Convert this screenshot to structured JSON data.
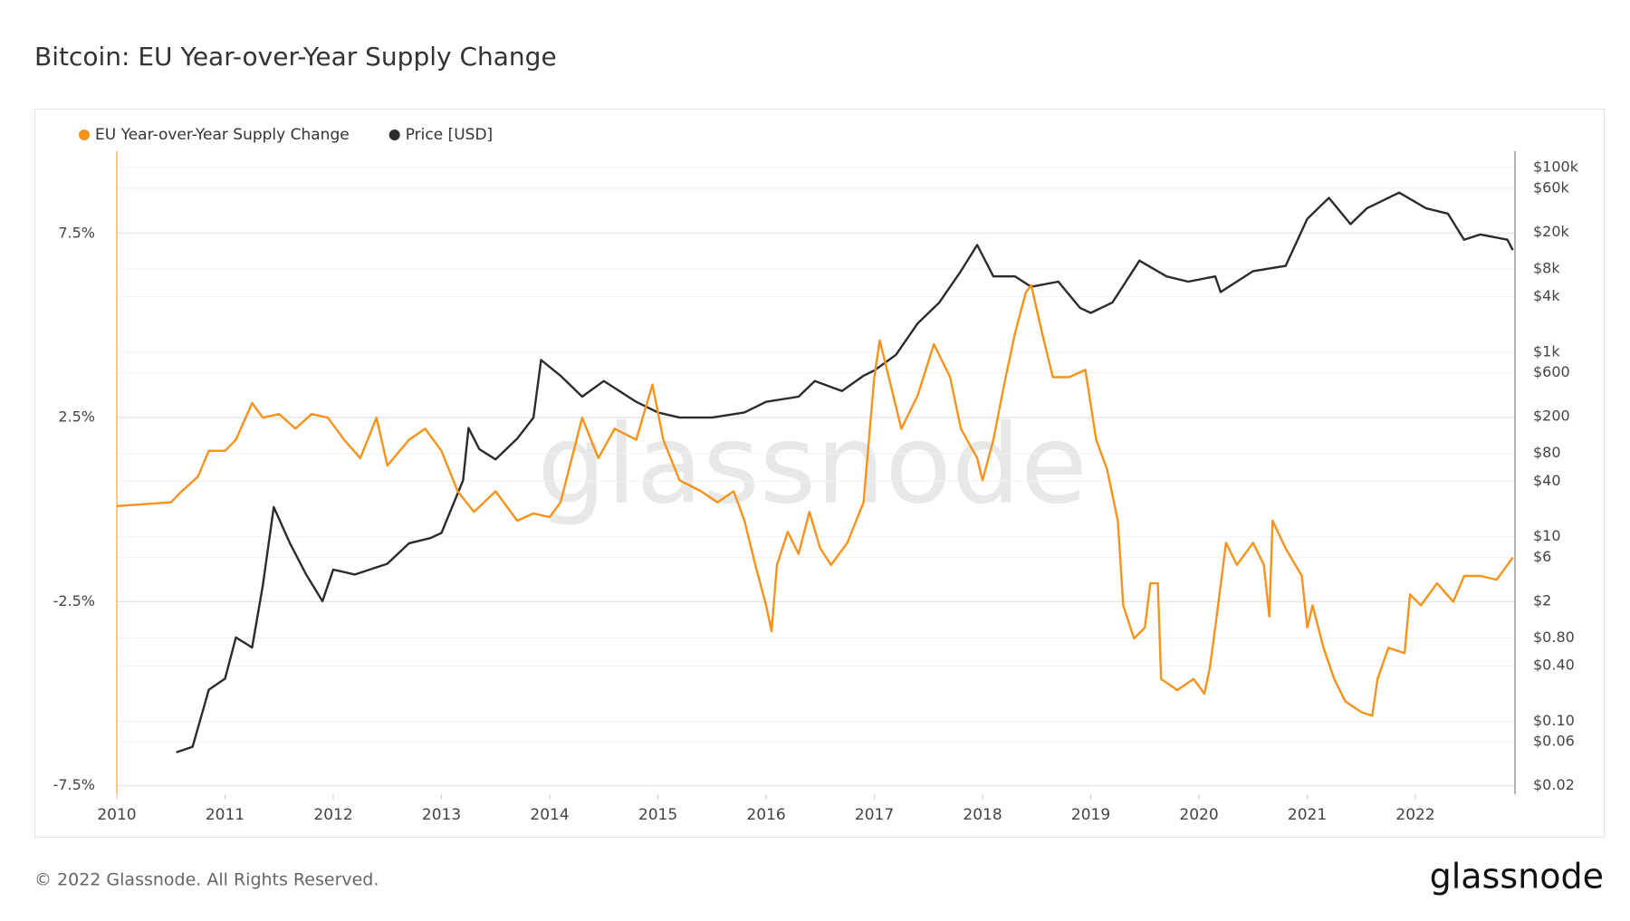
{
  "chart_data": {
    "type": "line",
    "title": "Bitcoin: EU Year-over-Year Supply Change",
    "watermark": "glassnode",
    "xlim": [
      2010,
      2022.92
    ],
    "xticks": [
      2010,
      2011,
      2012,
      2013,
      2014,
      2015,
      2016,
      2017,
      2018,
      2019,
      2020,
      2021,
      2022
    ],
    "ylim": [
      -7.73,
      9.74
    ],
    "yticks": [
      {
        "value": 7.5,
        "label": "7.5%"
      },
      {
        "value": 2.5,
        "label": "2.5%"
      },
      {
        "value": -2.5,
        "label": "-2.5%"
      },
      {
        "value": -7.5,
        "label": "-7.5%"
      }
    ],
    "y2lim": [
      0.0162,
      151000
    ],
    "y2log": true,
    "y2ticks": [
      {
        "value": 100000,
        "label": "$100k"
      },
      {
        "value": 60000,
        "label": "$60k"
      },
      {
        "value": 20000,
        "label": "$20k"
      },
      {
        "value": 8000,
        "label": "$8k"
      },
      {
        "value": 4000,
        "label": "$4k"
      },
      {
        "value": 1000,
        "label": "$1k"
      },
      {
        "value": 600,
        "label": "$600"
      },
      {
        "value": 200,
        "label": "$200"
      },
      {
        "value": 80,
        "label": "$80"
      },
      {
        "value": 40,
        "label": "$40"
      },
      {
        "value": 10,
        "label": "$10"
      },
      {
        "value": 6,
        "label": "$6"
      },
      {
        "value": 2,
        "label": "$2"
      },
      {
        "value": 0.8,
        "label": "$0.80"
      },
      {
        "value": 0.4,
        "label": "$0.40"
      },
      {
        "value": 0.1,
        "label": "$0.10"
      },
      {
        "value": 0.06,
        "label": "$0.06"
      },
      {
        "value": 0.02,
        "label": "$0.02"
      }
    ],
    "grid": true,
    "legend": "top-left",
    "series": [
      {
        "name": "EU Year-over-Year Supply Change",
        "color": "#f7931a",
        "x": [
          2010.0,
          2010.5,
          2010.6,
          2010.75,
          2010.85,
          2011.0,
          2011.1,
          2011.25,
          2011.35,
          2011.5,
          2011.65,
          2011.8,
          2011.95,
          2012.1,
          2012.25,
          2012.4,
          2012.5,
          2012.7,
          2012.85,
          2013.0,
          2013.15,
          2013.3,
          2013.5,
          2013.7,
          2013.85,
          2014.0,
          2014.1,
          2014.3,
          2014.45,
          2014.6,
          2014.8,
          2014.95,
          2015.05,
          2015.2,
          2015.4,
          2015.55,
          2015.7,
          2015.8,
          2015.9,
          2016.0,
          2016.05,
          2016.1,
          2016.2,
          2016.3,
          2016.4,
          2016.5,
          2016.6,
          2016.75,
          2016.9,
          2017.0,
          2017.05,
          2017.15,
          2017.25,
          2017.4,
          2017.55,
          2017.7,
          2017.8,
          2017.95,
          2018.0,
          2018.1,
          2018.2,
          2018.3,
          2018.4,
          2018.45,
          2018.55,
          2018.65,
          2018.8,
          2018.95,
          2019.05,
          2019.15,
          2019.25,
          2019.3,
          2019.4,
          2019.5,
          2019.55,
          2019.62,
          2019.65,
          2019.8,
          2019.95,
          2020.05,
          2020.1,
          2020.15,
          2020.25,
          2020.35,
          2020.5,
          2020.6,
          2020.65,
          2020.68,
          2020.8,
          2020.95,
          2021.0,
          2021.05,
          2021.15,
          2021.25,
          2021.35,
          2021.5,
          2021.6,
          2021.65,
          2021.75,
          2021.9,
          2021.95,
          2022.05,
          2022.2,
          2022.35,
          2022.45,
          2022.6,
          2022.75,
          2022.9
        ],
        "values": [
          0.1,
          0.2,
          0.5,
          0.9,
          1.6,
          1.6,
          1.9,
          2.9,
          2.5,
          2.6,
          2.2,
          2.6,
          2.5,
          1.9,
          1.4,
          2.5,
          1.2,
          1.9,
          2.2,
          1.6,
          0.5,
          -0.06,
          0.5,
          -0.3,
          -0.1,
          -0.2,
          0.2,
          2.5,
          1.4,
          2.2,
          1.9,
          3.4,
          1.9,
          0.8,
          0.5,
          0.2,
          0.5,
          -0.3,
          -1.5,
          -2.6,
          -3.3,
          -1.5,
          -0.6,
          -1.2,
          -0.06,
          -1.05,
          -1.5,
          -0.9,
          0.2,
          3.6,
          4.6,
          3.4,
          2.2,
          3.1,
          4.5,
          3.6,
          2.2,
          1.4,
          0.8,
          1.9,
          3.4,
          4.8,
          5.9,
          6.1,
          4.8,
          3.6,
          3.6,
          3.8,
          1.9,
          1.1,
          -0.3,
          -2.6,
          -3.5,
          -3.2,
          -2.0,
          -2.0,
          -4.6,
          -4.9,
          -4.6,
          -5.0,
          -4.3,
          -3.2,
          -0.9,
          -1.5,
          -0.9,
          -1.5,
          -2.9,
          -0.3,
          -1.05,
          -1.8,
          -3.2,
          -2.6,
          -3.75,
          -4.6,
          -5.2,
          -5.5,
          -5.6,
          -4.6,
          -3.75,
          -3.9,
          -2.3,
          -2.6,
          -2.0,
          -2.5,
          -1.8,
          -1.8,
          -1.9,
          -1.3
        ]
      },
      {
        "name": "Price [USD]",
        "color": "#2b2b2b",
        "axis": "y2",
        "x": [
          2010.55,
          2010.7,
          2010.85,
          2011.0,
          2011.1,
          2011.25,
          2011.35,
          2011.45,
          2011.6,
          2011.75,
          2011.9,
          2012.0,
          2012.2,
          2012.5,
          2012.7,
          2012.9,
          2013.0,
          2013.2,
          2013.25,
          2013.35,
          2013.5,
          2013.7,
          2013.85,
          2013.92,
          2014.1,
          2014.3,
          2014.5,
          2014.8,
          2015.0,
          2015.2,
          2015.5,
          2015.8,
          2016.0,
          2016.3,
          2016.45,
          2016.7,
          2016.9,
          2017.0,
          2017.2,
          2017.4,
          2017.6,
          2017.8,
          2017.95,
          2018.1,
          2018.3,
          2018.45,
          2018.7,
          2018.9,
          2019.0,
          2019.2,
          2019.45,
          2019.7,
          2019.9,
          2020.15,
          2020.2,
          2020.5,
          2020.8,
          2021.0,
          2021.2,
          2021.4,
          2021.55,
          2021.85,
          2022.1,
          2022.3,
          2022.45,
          2022.6,
          2022.85,
          2022.9
        ],
        "values": [
          0.046,
          0.053,
          0.22,
          0.29,
          0.81,
          0.63,
          3.0,
          21,
          8.5,
          3.9,
          2.0,
          4.4,
          3.9,
          5.1,
          8.5,
          9.7,
          11,
          41,
          151,
          89,
          69,
          116,
          196,
          824,
          556,
          330,
          488,
          290,
          223,
          196,
          196,
          223,
          290,
          330,
          488,
          380,
          556,
          634,
          938,
          2052,
          3460,
          7570,
          14560,
          6650,
          6650,
          5120,
          5830,
          3030,
          2670,
          3460,
          9840,
          6650,
          5830,
          6650,
          4490,
          7570,
          8630,
          27900,
          47100,
          24500,
          36300,
          53700,
          36300,
          31800,
          16600,
          18900,
          16600,
          12800
        ]
      }
    ]
  },
  "footer": "© 2022 Glassnode. All Rights Reserved.",
  "logo": "glassnode"
}
